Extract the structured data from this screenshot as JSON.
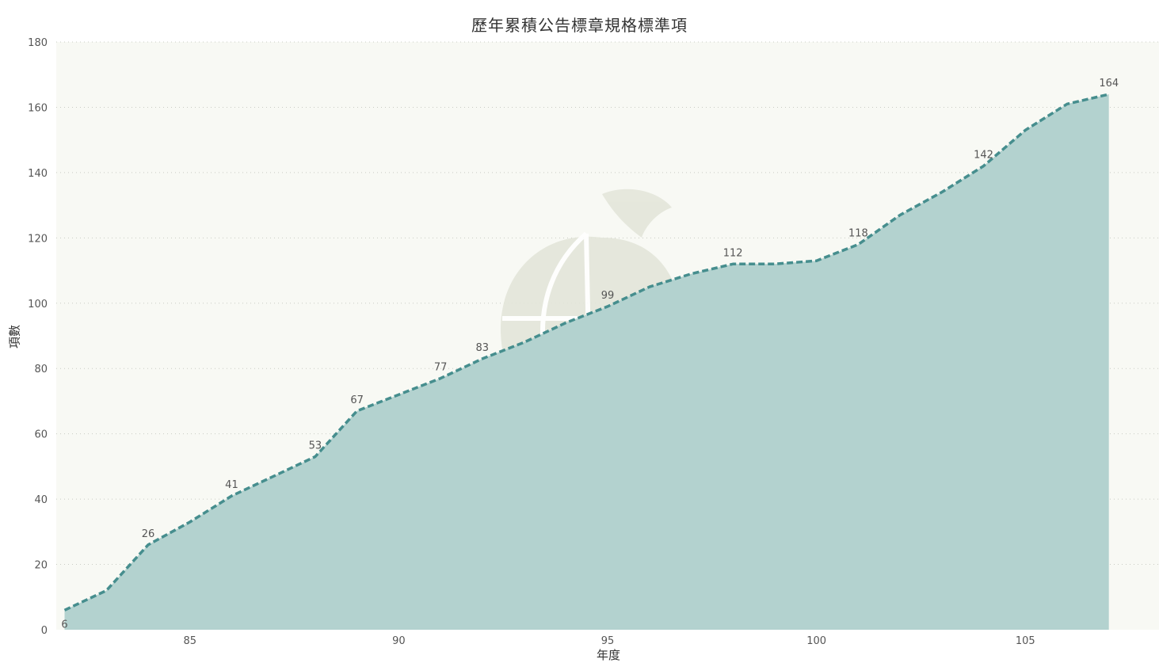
{
  "chart_data": {
    "type": "area",
    "title": "歷年累積公告標章規格標準項",
    "xlabel": "年度",
    "ylabel": "項數",
    "x": [
      82,
      83,
      84,
      85,
      86,
      87,
      88,
      89,
      90,
      91,
      92,
      93,
      94,
      95,
      96,
      97,
      98,
      99,
      100,
      101,
      102,
      103,
      104,
      105,
      106,
      107
    ],
    "values": [
      6,
      12,
      26,
      33,
      41,
      47,
      53,
      67,
      72,
      77,
      83,
      88,
      94,
      99,
      105,
      109,
      112,
      112,
      113,
      118,
      127,
      134,
      142,
      153,
      161,
      164
    ],
    "labeled_x": [
      82,
      84,
      86,
      88,
      89,
      91,
      92,
      95,
      98,
      101,
      104,
      107
    ],
    "xlim": [
      81.8,
      108.2
    ],
    "ylim": [
      0,
      180
    ],
    "x_ticks": [
      85,
      90,
      95,
      100,
      105
    ],
    "y_ticks": [
      0,
      20,
      40,
      60,
      80,
      100,
      120,
      140,
      160,
      180
    ],
    "grid": true,
    "colors": {
      "line": "#468e8e",
      "fill": "#b3d2cf",
      "plot_bg": "#f8f9f4",
      "watermark": "#e3e6da"
    }
  }
}
